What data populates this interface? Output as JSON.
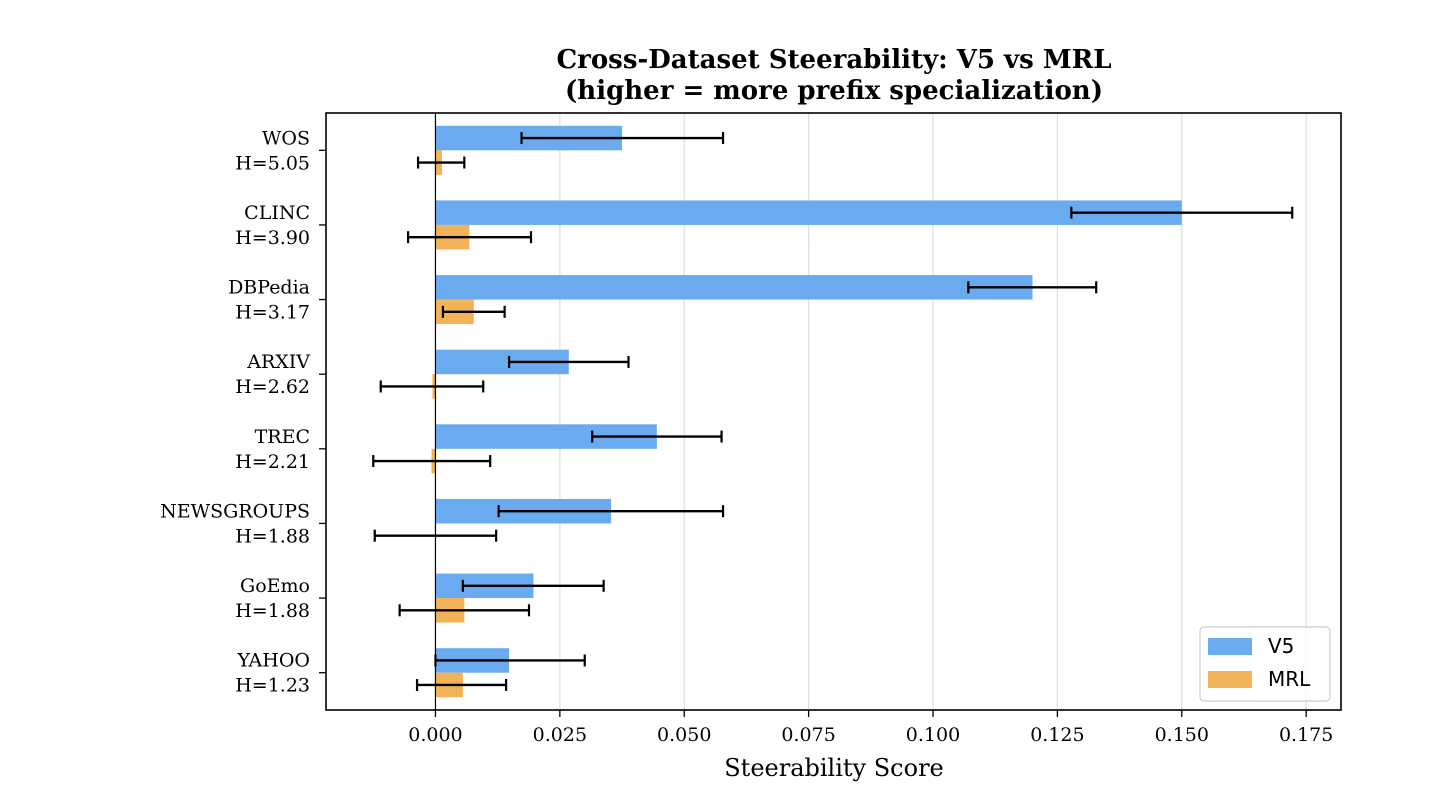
{
  "chart_data": {
    "type": "bar",
    "orientation": "horizontal",
    "title": "Cross-Dataset Steerability: V5 vs MRL",
    "subtitle": "(higher = more prefix specialization)",
    "xlabel": "Steerability Score",
    "ylabel": "",
    "xlim": [
      -0.022,
      0.182
    ],
    "xticks": [
      0.0,
      0.025,
      0.05,
      0.075,
      0.1,
      0.125,
      0.15,
      0.175
    ],
    "xtick_labels": [
      "0.000",
      "0.025",
      "0.050",
      "0.075",
      "0.100",
      "0.125",
      "0.150",
      "0.175"
    ],
    "grid": "x",
    "legend_position": "bottom-right",
    "categories": [
      {
        "name": "WOS",
        "entropy": "H=5.05"
      },
      {
        "name": "CLINC",
        "entropy": "H=3.90"
      },
      {
        "name": "DBPedia",
        "entropy": "H=3.17"
      },
      {
        "name": "ARXIV",
        "entropy": "H=2.62"
      },
      {
        "name": "TREC",
        "entropy": "H=2.21"
      },
      {
        "name": "NEWSGROUPS",
        "entropy": "H=1.88"
      },
      {
        "name": "GoEmo",
        "entropy": "H=1.88"
      },
      {
        "name": "YAHOO",
        "entropy": "H=1.23"
      }
    ],
    "series": [
      {
        "name": "V5",
        "color": "#6aabef",
        "values": [
          0.0375,
          0.15,
          0.12,
          0.0268,
          0.0445,
          0.0353,
          0.0197,
          0.0148
        ],
        "err_low": [
          0.0173,
          0.1278,
          0.1071,
          0.0148,
          0.0315,
          0.0127,
          0.0055,
          0.0
        ],
        "err_high": [
          0.0578,
          0.1722,
          0.1328,
          0.0388,
          0.0575,
          0.0578,
          0.0338,
          0.03
        ]
      },
      {
        "name": "MRL",
        "color": "#f2b257",
        "values": [
          0.0013,
          0.0068,
          0.0077,
          -0.0006,
          -0.0008,
          0.0,
          0.0058,
          0.0055
        ],
        "err_low": [
          -0.0035,
          -0.0055,
          0.0015,
          -0.011,
          -0.0125,
          -0.0122,
          -0.0072,
          -0.0037
        ],
        "err_high": [
          0.0058,
          0.0192,
          0.0139,
          0.0096,
          0.011,
          0.0122,
          0.0188,
          0.0142
        ]
      }
    ]
  }
}
